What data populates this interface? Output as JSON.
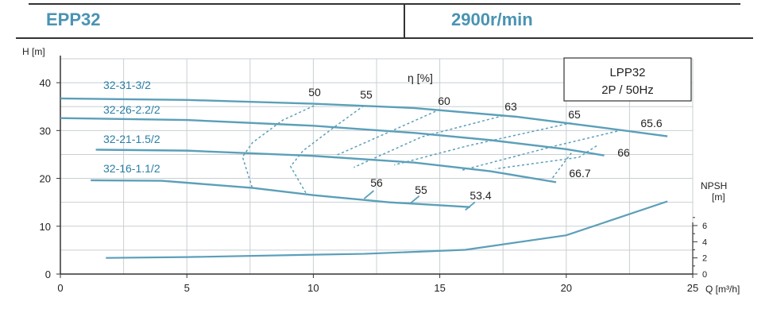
{
  "header": {
    "model": "EPP32",
    "speed": "2900r/min"
  },
  "legend_box": {
    "line1": "LPP32",
    "line2": "2P / 50Hz"
  },
  "colors": {
    "curve": "#5b9fb9",
    "grid": "#c9cfd3",
    "axis": "#333333",
    "label": "#2a7fa6"
  },
  "chart_data": {
    "type": "line",
    "xlabel": "Q [m³/h]",
    "ylabel": "H [m]",
    "y2label": "NPSH",
    "y2unit": "[m]",
    "xlim": [
      0,
      25
    ],
    "ylim": [
      0,
      45
    ],
    "y2lim": [
      0,
      7
    ],
    "xticks": [
      0,
      5,
      10,
      15,
      20,
      25
    ],
    "yticks": [
      0,
      10,
      20,
      30,
      40
    ],
    "y2ticks": [
      0,
      2,
      4,
      6
    ],
    "grid": true,
    "series": [
      {
        "name": "32-31-3/2",
        "x": [
          0,
          5,
          10,
          14,
          18,
          21,
          24
        ],
        "y": [
          36.7,
          36.4,
          35.6,
          34.7,
          32.9,
          30.9,
          28.8
        ]
      },
      {
        "name": "32-26-2.2/2",
        "x": [
          0,
          5,
          10,
          14,
          17,
          20,
          21.5
        ],
        "y": [
          32.6,
          32.2,
          31.0,
          29.5,
          28.0,
          26.1,
          24.8
        ]
      },
      {
        "name": "32-21-1.5/2",
        "x": [
          1.4,
          5,
          10,
          14,
          17,
          19.6
        ],
        "y": [
          26.0,
          25.8,
          24.7,
          23.3,
          21.5,
          19.2
        ]
      },
      {
        "name": "32-16-1.1/2",
        "x": [
          1.2,
          4,
          7.6,
          10,
          13,
          16.2
        ],
        "y": [
          19.6,
          19.5,
          18.0,
          16.5,
          15.0,
          14.0
        ]
      }
    ],
    "npsh": {
      "x": [
        1.8,
        5,
        10,
        12,
        16,
        20,
        24
      ],
      "y": [
        2.0,
        2.1,
        2.4,
        2.5,
        3.0,
        4.8,
        9.0
      ]
    },
    "efficiency_label": "η [%]",
    "efficiency_contours": [
      {
        "label": "50",
        "points": [
          [
            10.2,
            35.6
          ],
          [
            8.8,
            32.2
          ],
          [
            7.6,
            27.5
          ],
          [
            7.2,
            24.5
          ],
          [
            7.6,
            17.8
          ]
        ]
      },
      {
        "label": "55",
        "points": [
          [
            12.0,
            35.2
          ],
          [
            10.9,
            31.0
          ],
          [
            9.6,
            25.8
          ],
          [
            9.1,
            22.5
          ],
          [
            9.7,
            17.0
          ]
        ]
      },
      {
        "label": "60",
        "points": [
          [
            15.0,
            34.4
          ],
          [
            13.0,
            29.7
          ],
          [
            10.9,
            24.8
          ]
        ]
      },
      {
        "label": "63",
        "points": [
          [
            17.5,
            33.1
          ],
          [
            14.3,
            28.7
          ],
          [
            11.6,
            22.3
          ]
        ]
      },
      {
        "label": "65",
        "points": [
          [
            20.2,
            31.6
          ],
          [
            16.1,
            26.8
          ],
          [
            13.2,
            22.8
          ]
        ]
      },
      {
        "label": "65.6",
        "points": [
          [
            22.2,
            30.1
          ],
          [
            19.5,
            26.7
          ],
          [
            15.8,
            21.6
          ]
        ]
      },
      {
        "label": "66",
        "points": [
          [
            21.2,
            26.8
          ],
          [
            20.5,
            24.4
          ],
          [
            17.2,
            22.0
          ]
        ]
      },
      {
        "label": "66.7",
        "points": [
          [
            20.2,
            25.3
          ],
          [
            19.4,
            19.7
          ]
        ]
      }
    ],
    "efficiency_marks": [
      {
        "label": "56",
        "x": 12.2,
        "y": 16.6
      },
      {
        "label": "55",
        "x": 14.0,
        "y": 15.5
      },
      {
        "label": "53.4",
        "x": 16.2,
        "y": 14.2
      }
    ]
  }
}
